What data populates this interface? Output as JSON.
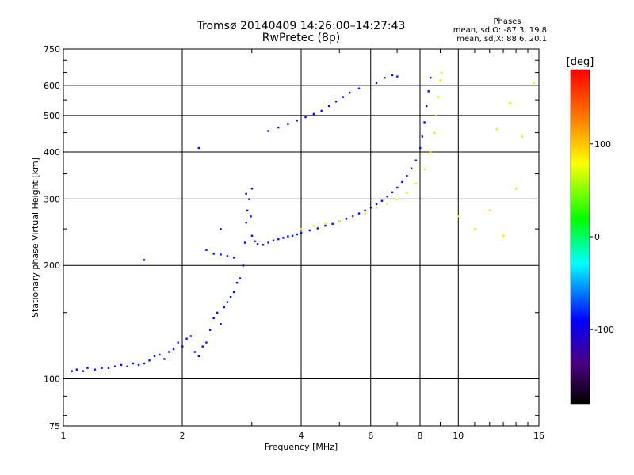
{
  "title": {
    "line1": "Tromsø 20140409 14:26:00–14:27:43",
    "line2": "RwPretec (8p)"
  },
  "phases": {
    "header": "Phases",
    "o_label": "mean, sd,O:",
    "o_values": "-87.3, 19.8",
    "x_label": "mean, sd,X:",
    "x_values": "88.6, 20.1"
  },
  "chart_data": {
    "type": "scatter",
    "xlabel": "Frequency [MHz]",
    "ylabel": "Stationary phase Virtual Height [km]",
    "xscale": "log",
    "yscale": "log",
    "xlim": [
      1,
      16
    ],
    "ylim": [
      75,
      750
    ],
    "xticks": [
      1,
      2,
      4,
      6,
      8,
      10,
      16
    ],
    "yticks": [
      75,
      100,
      200,
      300,
      400,
      500,
      600,
      750
    ],
    "grid": true,
    "colorbar": {
      "label": "[deg]",
      "range": [
        -180,
        180
      ],
      "ticks": [
        100,
        0,
        -100
      ]
    },
    "series": [
      {
        "name": "O",
        "phase_mean": -87.3,
        "points": [
          [
            1.05,
            105
          ],
          [
            1.08,
            106
          ],
          [
            1.12,
            105
          ],
          [
            1.15,
            107
          ],
          [
            1.2,
            106
          ],
          [
            1.25,
            107
          ],
          [
            1.3,
            107
          ],
          [
            1.35,
            108
          ],
          [
            1.4,
            109
          ],
          [
            1.45,
            108
          ],
          [
            1.5,
            110
          ],
          [
            1.55,
            109
          ],
          [
            1.6,
            110
          ],
          [
            1.65,
            112
          ],
          [
            1.7,
            115
          ],
          [
            1.75,
            116
          ],
          [
            1.8,
            113
          ],
          [
            1.85,
            118
          ],
          [
            1.9,
            120
          ],
          [
            1.95,
            125
          ],
          [
            2.0,
            122
          ],
          [
            2.05,
            128
          ],
          [
            2.1,
            130
          ],
          [
            2.15,
            118
          ],
          [
            2.2,
            115
          ],
          [
            2.25,
            122
          ],
          [
            2.3,
            125
          ],
          [
            2.35,
            135
          ],
          [
            2.4,
            145
          ],
          [
            2.45,
            150
          ],
          [
            2.5,
            140
          ],
          [
            2.55,
            155
          ],
          [
            2.6,
            160
          ],
          [
            2.65,
            165
          ],
          [
            2.7,
            170
          ],
          [
            2.75,
            180
          ],
          [
            2.8,
            185
          ],
          [
            2.85,
            200
          ],
          [
            2.88,
            230
          ],
          [
            2.9,
            260
          ],
          [
            2.92,
            280
          ],
          [
            2.95,
            300
          ],
          [
            2.98,
            270
          ],
          [
            3.0,
            240
          ],
          [
            3.05,
            232
          ],
          [
            3.1,
            228
          ],
          [
            3.2,
            227
          ],
          [
            3.3,
            230
          ],
          [
            3.4,
            233
          ],
          [
            3.5,
            235
          ],
          [
            3.6,
            237
          ],
          [
            3.7,
            239
          ],
          [
            3.8,
            240
          ],
          [
            3.9,
            242
          ],
          [
            4.0,
            244
          ],
          [
            4.2,
            248
          ],
          [
            4.4,
            251
          ],
          [
            4.6,
            255
          ],
          [
            4.8,
            258
          ],
          [
            5.0,
            262
          ],
          [
            5.2,
            266
          ],
          [
            5.4,
            270
          ],
          [
            5.6,
            275
          ],
          [
            5.8,
            280
          ],
          [
            6.0,
            285
          ],
          [
            6.2,
            291
          ],
          [
            6.4,
            297
          ],
          [
            6.6,
            305
          ],
          [
            6.8,
            313
          ],
          [
            7.0,
            322
          ],
          [
            7.2,
            333
          ],
          [
            7.4,
            346
          ],
          [
            7.6,
            362
          ],
          [
            7.8,
            380
          ],
          [
            8.0,
            410
          ],
          [
            8.1,
            440
          ],
          [
            8.2,
            480
          ],
          [
            8.3,
            530
          ],
          [
            8.4,
            580
          ],
          [
            8.5,
            630
          ],
          [
            3.3,
            455
          ],
          [
            3.5,
            465
          ],
          [
            3.7,
            475
          ],
          [
            3.9,
            485
          ],
          [
            4.1,
            495
          ],
          [
            4.3,
            505
          ],
          [
            4.5,
            515
          ],
          [
            4.7,
            530
          ],
          [
            4.9,
            545
          ],
          [
            5.1,
            560
          ],
          [
            5.3,
            575
          ],
          [
            5.6,
            590
          ],
          [
            6.2,
            610
          ],
          [
            6.5,
            630
          ],
          [
            6.8,
            640
          ],
          [
            7.0,
            635
          ],
          [
            2.3,
            220
          ],
          [
            2.4,
            215
          ],
          [
            2.5,
            214
          ],
          [
            2.6,
            212
          ],
          [
            2.7,
            210
          ],
          [
            1.6,
            207
          ],
          [
            2.2,
            410
          ],
          [
            2.5,
            250
          ],
          [
            2.9,
            310
          ],
          [
            3.0,
            320
          ]
        ]
      },
      {
        "name": "X",
        "phase_mean": 88.6,
        "points": [
          [
            4.0,
            250
          ],
          [
            4.3,
            255
          ],
          [
            4.6,
            258
          ],
          [
            5.0,
            262
          ],
          [
            5.4,
            268
          ],
          [
            5.8,
            275
          ],
          [
            6.2,
            285
          ],
          [
            6.6,
            292
          ],
          [
            7.0,
            300
          ],
          [
            7.4,
            312
          ],
          [
            7.8,
            330
          ],
          [
            8.2,
            360
          ],
          [
            8.5,
            400
          ],
          [
            8.7,
            450
          ],
          [
            8.8,
            500
          ],
          [
            8.9,
            560
          ],
          [
            9.0,
            620
          ],
          [
            9.05,
            650
          ],
          [
            10.0,
            270
          ],
          [
            11.0,
            250
          ],
          [
            12.0,
            280
          ],
          [
            13.0,
            240
          ],
          [
            14.0,
            320
          ],
          [
            12.5,
            460
          ],
          [
            13.5,
            540
          ],
          [
            14.5,
            440
          ],
          [
            15.5,
            610
          ]
        ]
      }
    ]
  }
}
